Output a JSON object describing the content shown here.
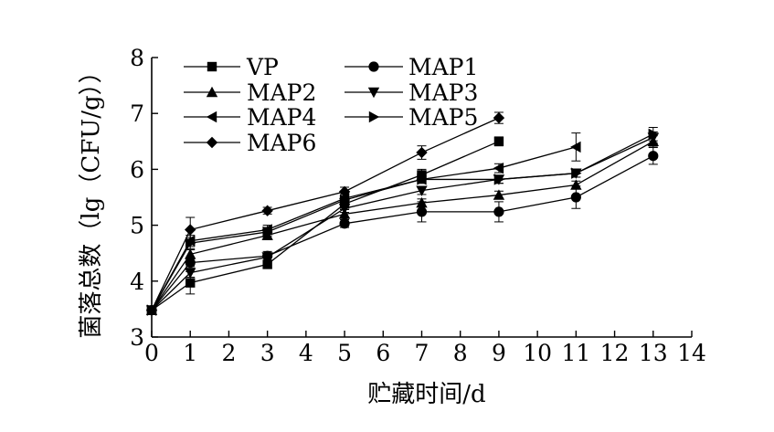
{
  "chart_data": {
    "type": "line",
    "title": "",
    "xlabel": "贮藏时间/d",
    "ylabel": "菌落总数（lg（CFU/g））",
    "xlim": [
      0,
      14
    ],
    "ylim": [
      3,
      8
    ],
    "xticks": [
      "0",
      "1",
      "2",
      "3",
      "4",
      "5",
      "6",
      "7",
      "8",
      "9",
      "10",
      "11",
      "12",
      "13",
      "14"
    ],
    "yticks": [
      "3",
      "4",
      "5",
      "6",
      "7",
      "8"
    ],
    "grid": false,
    "legend": "top-left",
    "series": [
      {
        "name": "VP",
        "marker": "square",
        "x": [
          0,
          1,
          3,
          5,
          7,
          9
        ],
        "y": [
          3.48,
          3.97,
          4.3,
          5.38,
          5.9,
          6.5
        ],
        "err": [
          0.05,
          0.2,
          0.07,
          0.1,
          0.1,
          0.08
        ]
      },
      {
        "name": "MAP1",
        "marker": "circle",
        "x": [
          0,
          1,
          3,
          5,
          7,
          9,
          11,
          13
        ],
        "y": [
          3.48,
          4.33,
          4.45,
          5.03,
          5.24,
          5.24,
          5.5,
          6.24
        ],
        "err": [
          0.05,
          0.07,
          0.08,
          0.07,
          0.18,
          0.18,
          0.2,
          0.15
        ]
      },
      {
        "name": "MAP2",
        "marker": "triangle-up",
        "x": [
          0,
          1,
          3,
          5,
          7,
          9,
          11,
          13
        ],
        "y": [
          3.48,
          4.48,
          4.82,
          5.2,
          5.4,
          5.54,
          5.72,
          6.5
        ],
        "err": [
          0.05,
          0.08,
          0.08,
          0.08,
          0.07,
          0.07,
          0.07,
          0.1
        ]
      },
      {
        "name": "MAP3",
        "marker": "triangle-down",
        "x": [
          0,
          1,
          3,
          5,
          7,
          9,
          11,
          13
        ],
        "y": [
          3.48,
          4.15,
          4.43,
          5.3,
          5.62,
          5.82,
          5.93,
          6.57
        ],
        "err": [
          0.05,
          0.08,
          0.07,
          0.07,
          0.07,
          0.07,
          0.07,
          0.1
        ]
      },
      {
        "name": "MAP4",
        "marker": "triangle-left",
        "x": [
          0,
          1,
          3,
          5,
          7,
          9,
          11
        ],
        "y": [
          3.48,
          4.72,
          4.92,
          5.48,
          5.82,
          6.02,
          6.4
        ],
        "err": [
          0.05,
          0.1,
          0.08,
          0.07,
          0.07,
          0.08,
          0.25
        ]
      },
      {
        "name": "MAP5",
        "marker": "triangle-right",
        "x": [
          0,
          1,
          3,
          5,
          7,
          9,
          11,
          13
        ],
        "y": [
          3.48,
          4.68,
          4.88,
          5.45,
          5.82,
          5.82,
          5.93,
          6.63
        ],
        "err": [
          0.05,
          0.1,
          0.08,
          0.07,
          0.07,
          0.07,
          0.07,
          0.12
        ]
      },
      {
        "name": "MAP6",
        "marker": "diamond",
        "x": [
          0,
          1,
          3,
          5,
          7,
          9
        ],
        "y": [
          3.48,
          4.92,
          5.26,
          5.6,
          6.3,
          6.92
        ],
        "err": [
          0.05,
          0.22,
          0.06,
          0.08,
          0.12,
          0.1
        ]
      }
    ]
  }
}
